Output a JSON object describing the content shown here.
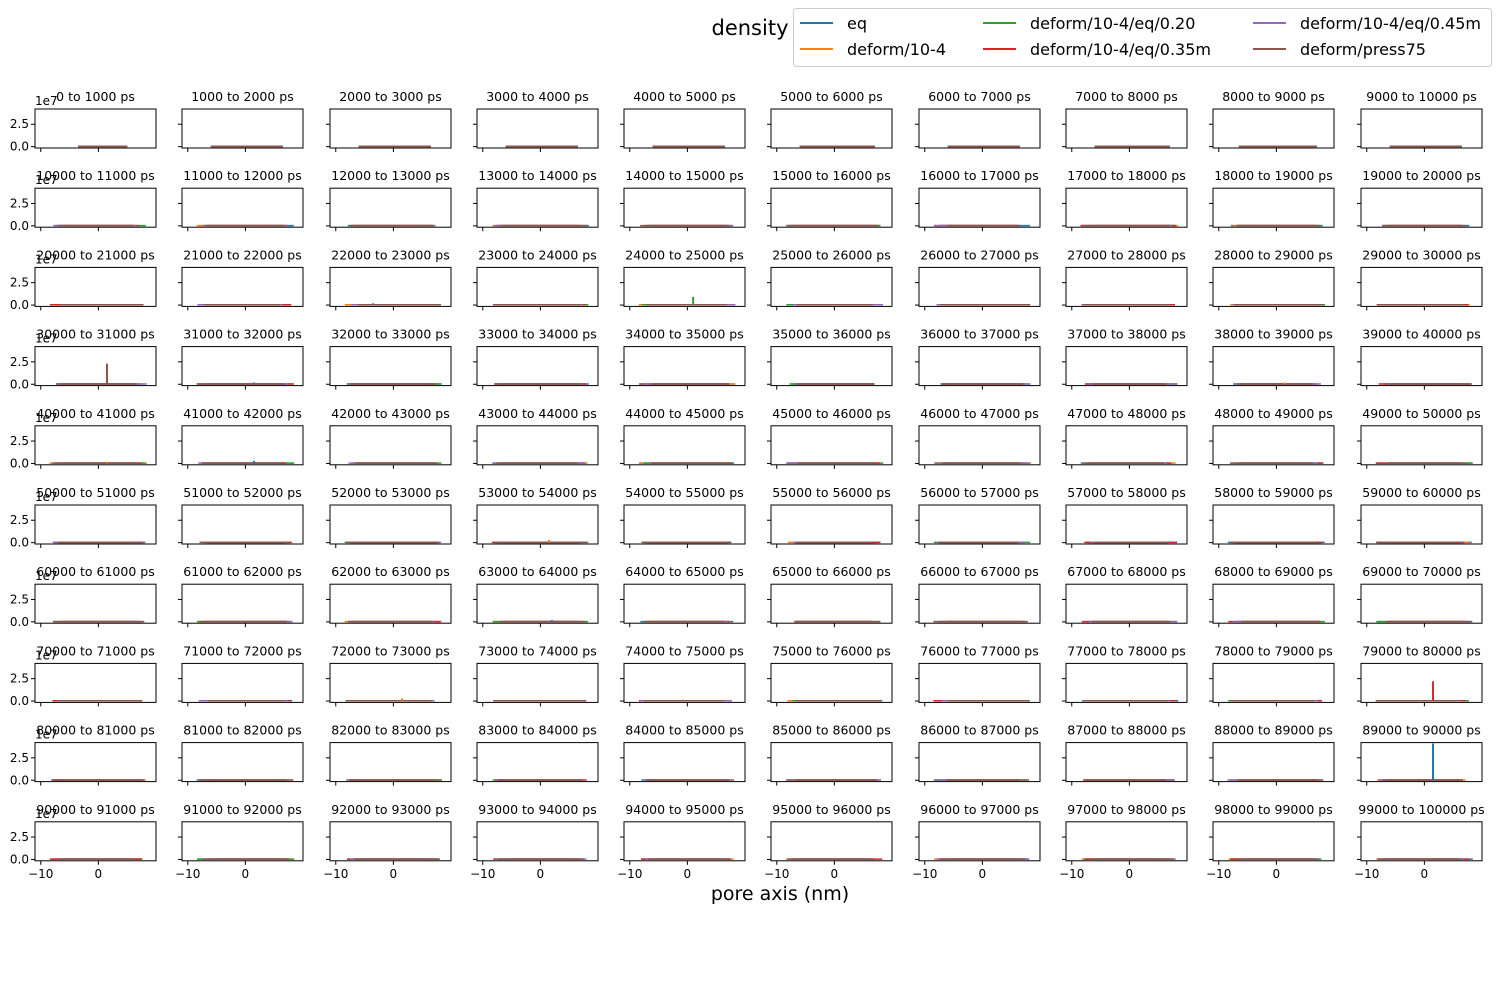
{
  "chart_data": {
    "type": "line",
    "title": "density",
    "xlabel": "pore axis (nm)",
    "ylabel": "",
    "grid": false,
    "legend_placement": "top-right",
    "rows": 10,
    "cols": 10,
    "xlim": [
      -11,
      10
    ],
    "ylim": [
      -0.15,
      4.2
    ],
    "y_scale_label": "1e7",
    "xtick_labels": [
      "−10",
      "0"
    ],
    "ytick_labels": [
      "0.0",
      "2.5"
    ],
    "series": [
      {
        "name": "eq",
        "color": "#1f77b4"
      },
      {
        "name": "deform/10-4",
        "color": "#ff7f0e"
      },
      {
        "name": "deform/10-4/eq/0.20",
        "color": "#2ca02c"
      },
      {
        "name": "deform/10-4/eq/0.35m",
        "color": "#d62728"
      },
      {
        "name": "deform/10-4/eq/0.45m",
        "color": "#9467bd"
      },
      {
        "name": "deform/press75",
        "color": "#8c564b"
      }
    ],
    "panel_titles": [
      "0 to 1000 ps",
      "1000 to 2000 ps",
      "2000 to 3000 ps",
      "3000 to 4000 ps",
      "4000 to 5000 ps",
      "5000 to 6000 ps",
      "6000 to 7000 ps",
      "7000 to 8000 ps",
      "8000 to 9000 ps",
      "9000 to 10000 ps",
      "10000 to 11000 ps",
      "11000 to 12000 ps",
      "12000 to 13000 ps",
      "13000 to 14000 ps",
      "14000 to 15000 ps",
      "15000 to 16000 ps",
      "16000 to 17000 ps",
      "17000 to 18000 ps",
      "18000 to 19000 ps",
      "19000 to 20000 ps",
      "20000 to 21000 ps",
      "21000 to 22000 ps",
      "22000 to 23000 ps",
      "23000 to 24000 ps",
      "24000 to 25000 ps",
      "25000 to 26000 ps",
      "26000 to 27000 ps",
      "27000 to 28000 ps",
      "28000 to 29000 ps",
      "29000 to 30000 ps",
      "30000 to 31000 ps",
      "31000 to 32000 ps",
      "32000 to 33000 ps",
      "33000 to 34000 ps",
      "34000 to 35000 ps",
      "35000 to 36000 ps",
      "36000 to 37000 ps",
      "37000 to 38000 ps",
      "38000 to 39000 ps",
      "39000 to 40000 ps",
      "40000 to 41000 ps",
      "41000 to 42000 ps",
      "42000 to 43000 ps",
      "43000 to 44000 ps",
      "44000 to 45000 ps",
      "45000 to 46000 ps",
      "46000 to 47000 ps",
      "47000 to 48000 ps",
      "48000 to 49000 ps",
      "49000 to 50000 ps",
      "50000 to 51000 ps",
      "51000 to 52000 ps",
      "52000 to 53000 ps",
      "53000 to 54000 ps",
      "54000 to 55000 ps",
      "55000 to 56000 ps",
      "56000 to 57000 ps",
      "57000 to 58000 ps",
      "58000 to 59000 ps",
      "59000 to 60000 ps",
      "60000 to 61000 ps",
      "61000 to 62000 ps",
      "62000 to 63000 ps",
      "63000 to 64000 ps",
      "64000 to 65000 ps",
      "65000 to 66000 ps",
      "66000 to 67000 ps",
      "67000 to 68000 ps",
      "68000 to 69000 ps",
      "69000 to 70000 ps",
      "70000 to 71000 ps",
      "71000 to 72000 ps",
      "72000 to 73000 ps",
      "73000 to 74000 ps",
      "74000 to 75000 ps",
      "75000 to 76000 ps",
      "76000 to 77000 ps",
      "77000 to 78000 ps",
      "78000 to 79000 ps",
      "79000 to 80000 ps",
      "80000 to 81000 ps",
      "81000 to 82000 ps",
      "82000 to 83000 ps",
      "83000 to 84000 ps",
      "84000 to 85000 ps",
      "85000 to 86000 ps",
      "86000 to 87000 ps",
      "87000 to 88000 ps",
      "88000 to 89000 ps",
      "89000 to 90000 ps",
      "90000 to 91000 ps",
      "91000 to 92000 ps",
      "92000 to 93000 ps",
      "93000 to 94000 ps",
      "94000 to 95000 ps",
      "95000 to 96000 ps",
      "96000 to 97000 ps",
      "97000 to 98000 ps",
      "98000 to 99000 ps",
      "99000 to 100000 ps"
    ],
    "panel_ranges": [
      {
        "panel": 0,
        "xmin": -3.5,
        "xmax": 5.0,
        "flat_series": [
          0,
          1,
          2,
          3,
          4,
          5
        ]
      },
      {
        "panel": 1,
        "xmin": -6.0,
        "xmax": 6.5,
        "flat_series": [
          0,
          1,
          2,
          3,
          4,
          5
        ]
      },
      {
        "panel": 2,
        "xmin": -6.0,
        "xmax": 6.5,
        "flat_series": [
          0,
          1,
          2,
          3,
          4,
          5
        ]
      },
      {
        "panel": 3,
        "xmin": -6.0,
        "xmax": 6.5,
        "flat_series": [
          0,
          1,
          2,
          3,
          4,
          5
        ]
      },
      {
        "panel": 4,
        "xmin": -6.0,
        "xmax": 6.5,
        "flat_series": [
          0,
          1,
          2,
          3,
          4,
          5
        ]
      },
      {
        "panel": 5,
        "xmin": -6.0,
        "xmax": 7.0,
        "flat_series": [
          0,
          1,
          2,
          3,
          4,
          5
        ]
      },
      {
        "panel": 6,
        "xmin": -6.0,
        "xmax": 6.5,
        "flat_series": [
          0,
          1,
          2,
          3,
          4,
          5
        ]
      },
      {
        "panel": 7,
        "xmin": -6.0,
        "xmax": 7.0,
        "flat_series": [
          0,
          1,
          2,
          3,
          4,
          5
        ]
      },
      {
        "panel": 8,
        "xmin": -6.5,
        "xmax": 7.0,
        "flat_series": [
          0,
          1,
          2,
          3,
          4,
          5
        ]
      },
      {
        "panel": 9,
        "xmin": -6.0,
        "xmax": 6.5,
        "flat_series": [
          0,
          1,
          2,
          3,
          4,
          5
        ]
      }
    ],
    "spikes": [
      {
        "panel": 24,
        "series": "deform/10-4/eq/0.20",
        "x": 1.0,
        "y": 0.9
      },
      {
        "panel": 30,
        "series": "deform/press75",
        "x": 1.5,
        "y": 2.3
      },
      {
        "panel": 31,
        "series": "eq",
        "x": 1.5,
        "y": 0.2
      },
      {
        "panel": 38,
        "series": "deform/10-4",
        "x": 1.5,
        "y": 0.2
      },
      {
        "panel": 40,
        "series": "deform/10-4",
        "x": 1.5,
        "y": 0.2
      },
      {
        "panel": 41,
        "series": "eq",
        "x": 1.5,
        "y": 0.3
      },
      {
        "panel": 53,
        "series": "deform/10-4",
        "x": 1.5,
        "y": 0.3
      },
      {
        "panel": 63,
        "series": "eq",
        "x": 2.0,
        "y": 0.2
      },
      {
        "panel": 72,
        "series": "deform/10-4",
        "x": 1.5,
        "y": 0.3
      },
      {
        "panel": 79,
        "series": "deform/10-4/eq/0.35m",
        "x": 1.5,
        "y": 2.2
      },
      {
        "panel": 89,
        "series": "eq",
        "x": 1.5,
        "y": 4.1
      },
      {
        "panel": 22,
        "series": "eq",
        "x": -3.5,
        "y": 0.2
      }
    ]
  }
}
